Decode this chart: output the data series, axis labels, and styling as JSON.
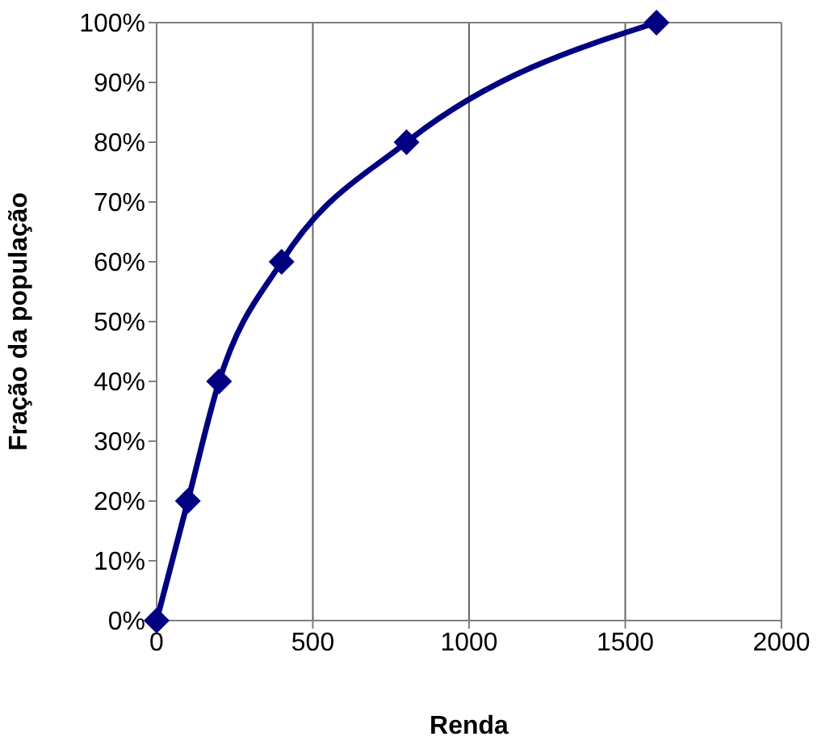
{
  "chart_data": {
    "type": "line",
    "xlabel": "Renda",
    "ylabel": "Fração da população",
    "x": [
      0,
      100,
      200,
      400,
      800,
      1600
    ],
    "series": [
      {
        "color": "#000080",
        "values": [
          0,
          20,
          40,
          60,
          80,
          100
        ]
      }
    ],
    "xlim": [
      0,
      2000
    ],
    "xticks": [
      0,
      500,
      1000,
      1500,
      2000
    ],
    "ylim": [
      0,
      100
    ],
    "yticks": [
      {
        "value": 0,
        "label": "0%"
      },
      {
        "value": 10,
        "label": "10%"
      },
      {
        "value": 20,
        "label": "20%"
      },
      {
        "value": 30,
        "label": "30%"
      },
      {
        "value": 40,
        "label": "40%"
      },
      {
        "value": 50,
        "label": "50%"
      },
      {
        "value": 60,
        "label": "60%"
      },
      {
        "value": 70,
        "label": "70%"
      },
      {
        "value": 80,
        "label": "80%"
      },
      {
        "value": 90,
        "label": "90%"
      },
      {
        "value": 100,
        "label": "100%"
      }
    ],
    "grid": "x",
    "marker": "diamond",
    "line_style": "solid",
    "legend": false
  }
}
